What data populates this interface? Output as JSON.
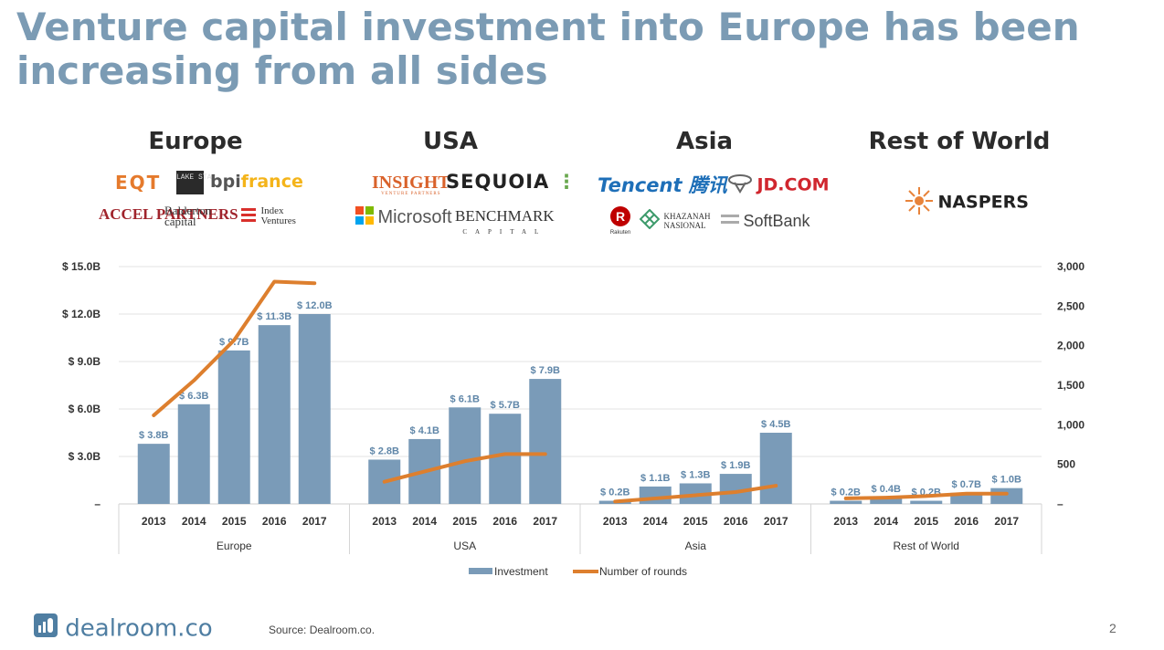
{
  "title": "Venture capital investment into Europe has been increasing from all sides",
  "regions": [
    {
      "name": "Europe",
      "logos": [
        "EQT",
        "LAKE STAR",
        "bpifrance",
        "ACCEL PARTNERS",
        "Balderton capital",
        "Index Ventures"
      ]
    },
    {
      "name": "USA",
      "logos": [
        "INSIGHT",
        "VENTURE PARTNERS",
        "SEQUOIA",
        "Microsoft",
        "BENCHMARK",
        "CAPITAL"
      ]
    },
    {
      "name": "Asia",
      "logos": [
        "Tencent 腾讯",
        "JD.COM",
        "Rakuten",
        "KHAZANAH NASIONAL",
        "SoftBank"
      ]
    },
    {
      "name": "Rest of World",
      "logos": [
        "NASPERS"
      ]
    }
  ],
  "chart_data": {
    "type": "bar",
    "title": "",
    "groups": [
      "Europe",
      "USA",
      "Asia",
      "Rest of World"
    ],
    "categories": [
      "2013",
      "2014",
      "2015",
      "2016",
      "2017"
    ],
    "series": [
      {
        "name": "Investment",
        "axis": "left",
        "type": "bar",
        "values": [
          [
            3.8,
            6.3,
            9.7,
            11.3,
            12.0
          ],
          [
            2.8,
            4.1,
            6.1,
            5.7,
            7.9
          ],
          [
            0.2,
            1.1,
            1.3,
            1.9,
            4.5
          ],
          [
            0.2,
            0.4,
            0.2,
            0.7,
            1.0
          ]
        ],
        "labels": [
          [
            "$ 3.8B",
            "$ 6.3B",
            "$ 9.7B",
            "$ 11.3B",
            "$ 12.0B"
          ],
          [
            "$ 2.8B",
            "$ 4.1B",
            "$ 6.1B",
            "$ 5.7B",
            "$ 7.9B"
          ],
          [
            "$ 0.2B",
            "$ 1.1B",
            "$ 1.3B",
            "$ 1.9B",
            "$ 4.5B"
          ],
          [
            "$ 0.2B",
            "$ 0.4B",
            "$ 0.2B",
            "$ 0.7B",
            "$ 1.0B"
          ]
        ]
      },
      {
        "name": "Number of rounds",
        "axis": "right",
        "type": "line",
        "values": [
          [
            1120,
            1560,
            2070,
            2810,
            2790
          ],
          [
            280,
            410,
            540,
            630,
            630
          ],
          [
            30,
            70,
            110,
            150,
            230
          ],
          [
            70,
            80,
            100,
            130,
            130
          ]
        ]
      }
    ],
    "y_left": {
      "ylim": [
        0,
        15
      ],
      "ticks": [
        0,
        3,
        6,
        9,
        12,
        15
      ],
      "tick_labels": [
        "–",
        "$ 3.0B",
        "$ 6.0B",
        "$ 9.0B",
        "$ 12.0B",
        "$ 15.0B"
      ]
    },
    "y_right": {
      "ylim": [
        0,
        3000
      ],
      "ticks": [
        0,
        500,
        1000,
        1500,
        2000,
        2500,
        3000
      ],
      "tick_labels": [
        "–",
        "500",
        "1,000",
        "1,500",
        "2,000",
        "2,500",
        "3,000"
      ]
    },
    "grid": true,
    "legend": [
      "Investment",
      "Number of rounds"
    ],
    "legend_position": "bottom",
    "colors": {
      "bar": "#7a9bb8",
      "line": "#dd7f2e"
    }
  },
  "footer": {
    "brand": "dealroom.co",
    "source": "Source: Dealroom.co.",
    "page": "2"
  }
}
